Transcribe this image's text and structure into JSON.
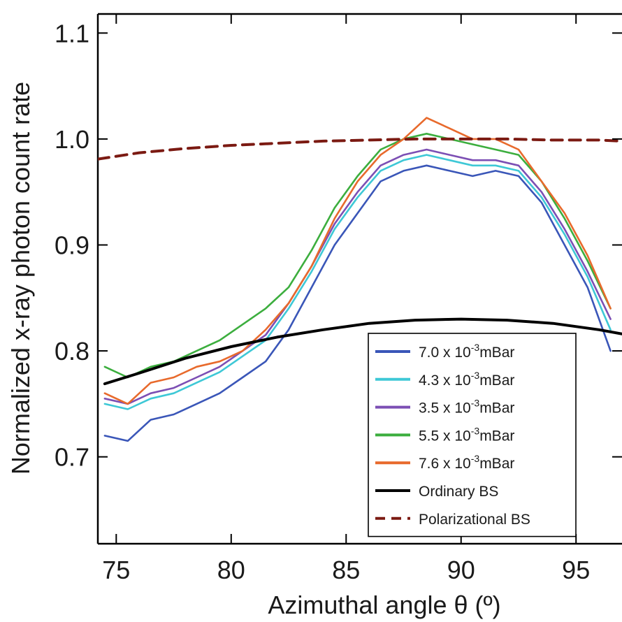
{
  "chart_data": {
    "type": "line",
    "title": "",
    "xlabel": "Azimuthal angle θ (º)",
    "ylabel": "Normalized  x-ray photon count rate",
    "xlim": [
      74.2,
      97.0
    ],
    "ylim": [
      0.618,
      1.118
    ],
    "x_ticks": [
      75,
      80,
      85,
      90,
      95
    ],
    "y_ticks": [
      0.7,
      0.8,
      0.9,
      1.0,
      1.1
    ],
    "x_tick_labels": [
      "75",
      "80",
      "85",
      "90",
      "95"
    ],
    "y_tick_labels": [
      "0.7",
      "0.8",
      "0.9",
      "1.0",
      "1.1"
    ],
    "grid": false,
    "legend_position": "bottom-right",
    "series": [
      {
        "name": "7.0 x 10-3mBar",
        "legend_base": "7.0 x 10",
        "legend_sup": "-3",
        "legend_unit": "mBar",
        "color": "#3a56b8",
        "style": "solid",
        "x": [
          74.5,
          75.5,
          76.5,
          77.5,
          78.5,
          79.5,
          80.5,
          81.5,
          82.5,
          83.5,
          84.5,
          85.5,
          86.5,
          87.5,
          88.5,
          89.5,
          90.5,
          91.5,
          92.5,
          93.5,
          94.5,
          95.5,
          96.5
        ],
        "values": [
          0.72,
          0.715,
          0.735,
          0.74,
          0.75,
          0.76,
          0.775,
          0.79,
          0.82,
          0.86,
          0.9,
          0.93,
          0.96,
          0.97,
          0.975,
          0.97,
          0.965,
          0.97,
          0.965,
          0.94,
          0.9,
          0.86,
          0.8
        ]
      },
      {
        "name": "4.3 x 10-3mBar",
        "legend_base": "4.3 x 10",
        "legend_sup": "-3",
        "legend_unit": "mBar",
        "color": "#3ec8d6",
        "style": "solid",
        "x": [
          74.5,
          75.5,
          76.5,
          77.5,
          78.5,
          79.5,
          80.5,
          81.5,
          82.5,
          83.5,
          84.5,
          85.5,
          86.5,
          87.5,
          88.5,
          89.5,
          90.5,
          91.5,
          92.5,
          93.5,
          94.5,
          95.5,
          96.5
        ],
        "values": [
          0.75,
          0.745,
          0.755,
          0.76,
          0.77,
          0.78,
          0.795,
          0.81,
          0.84,
          0.875,
          0.915,
          0.945,
          0.97,
          0.98,
          0.985,
          0.98,
          0.975,
          0.975,
          0.97,
          0.945,
          0.91,
          0.87,
          0.82
        ]
      },
      {
        "name": "3.5 x 10-3mBar",
        "legend_base": "3.5 x 10",
        "legend_sup": "-3",
        "legend_unit": "mBar",
        "color": "#7c4fb4",
        "style": "solid",
        "x": [
          74.5,
          75.5,
          76.5,
          77.5,
          78.5,
          79.5,
          80.5,
          81.5,
          82.5,
          83.5,
          84.5,
          85.5,
          86.5,
          87.5,
          88.5,
          89.5,
          90.5,
          91.5,
          92.5,
          93.5,
          94.5,
          95.5,
          96.5
        ],
        "values": [
          0.755,
          0.75,
          0.76,
          0.765,
          0.775,
          0.785,
          0.8,
          0.815,
          0.845,
          0.88,
          0.92,
          0.95,
          0.975,
          0.985,
          0.99,
          0.985,
          0.98,
          0.98,
          0.975,
          0.95,
          0.915,
          0.875,
          0.83
        ]
      },
      {
        "name": "5.5 x 10-3mBar",
        "legend_base": "5.5 x 10",
        "legend_sup": "-3",
        "legend_unit": "mBar",
        "color": "#3cae3e",
        "style": "solid",
        "x": [
          74.5,
          75.5,
          76.5,
          77.5,
          78.5,
          79.5,
          80.5,
          81.5,
          82.5,
          83.5,
          84.5,
          85.5,
          86.5,
          87.5,
          88.5,
          89.5,
          90.5,
          91.5,
          92.5,
          93.5,
          94.5,
          95.5,
          96.5
        ],
        "values": [
          0.785,
          0.775,
          0.785,
          0.79,
          0.8,
          0.81,
          0.825,
          0.84,
          0.86,
          0.895,
          0.935,
          0.965,
          0.99,
          1.0,
          1.005,
          1.0,
          0.995,
          0.99,
          0.985,
          0.96,
          0.925,
          0.885,
          0.84
        ]
      },
      {
        "name": "7.6 x 10-3mBar",
        "legend_base": "7.6 x 10",
        "legend_sup": "-3",
        "legend_unit": "mBar",
        "color": "#e86a2c",
        "style": "solid",
        "x": [
          74.5,
          75.5,
          76.5,
          77.5,
          78.5,
          79.5,
          80.5,
          81.5,
          82.5,
          83.5,
          84.5,
          85.5,
          86.5,
          87.5,
          88.5,
          89.5,
          90.5,
          91.5,
          92.5,
          93.5,
          94.5,
          95.5,
          96.5
        ],
        "values": [
          0.76,
          0.75,
          0.77,
          0.775,
          0.785,
          0.79,
          0.8,
          0.82,
          0.845,
          0.88,
          0.925,
          0.96,
          0.985,
          1.0,
          1.02,
          1.01,
          1.0,
          1.0,
          0.99,
          0.96,
          0.93,
          0.89,
          0.84
        ]
      },
      {
        "name": "Ordinary BS",
        "color": "#000000",
        "style": "solid",
        "x": [
          74.5,
          76,
          78,
          80,
          82,
          84,
          86,
          88,
          90,
          92,
          94,
          96,
          97
        ],
        "values": [
          0.769,
          0.779,
          0.793,
          0.804,
          0.813,
          0.82,
          0.826,
          0.829,
          0.83,
          0.829,
          0.826,
          0.82,
          0.816
        ]
      },
      {
        "name": "Polarizational BS",
        "color": "#7b1a12",
        "style": "dashed",
        "x": [
          74.2,
          76,
          78,
          80,
          82,
          84,
          86,
          88,
          90,
          92,
          94,
          96,
          97
        ],
        "values": [
          0.981,
          0.987,
          0.991,
          0.994,
          0.996,
          0.998,
          0.999,
          1.0,
          1.0,
          1.0,
          0.999,
          0.999,
          0.998
        ]
      }
    ]
  }
}
